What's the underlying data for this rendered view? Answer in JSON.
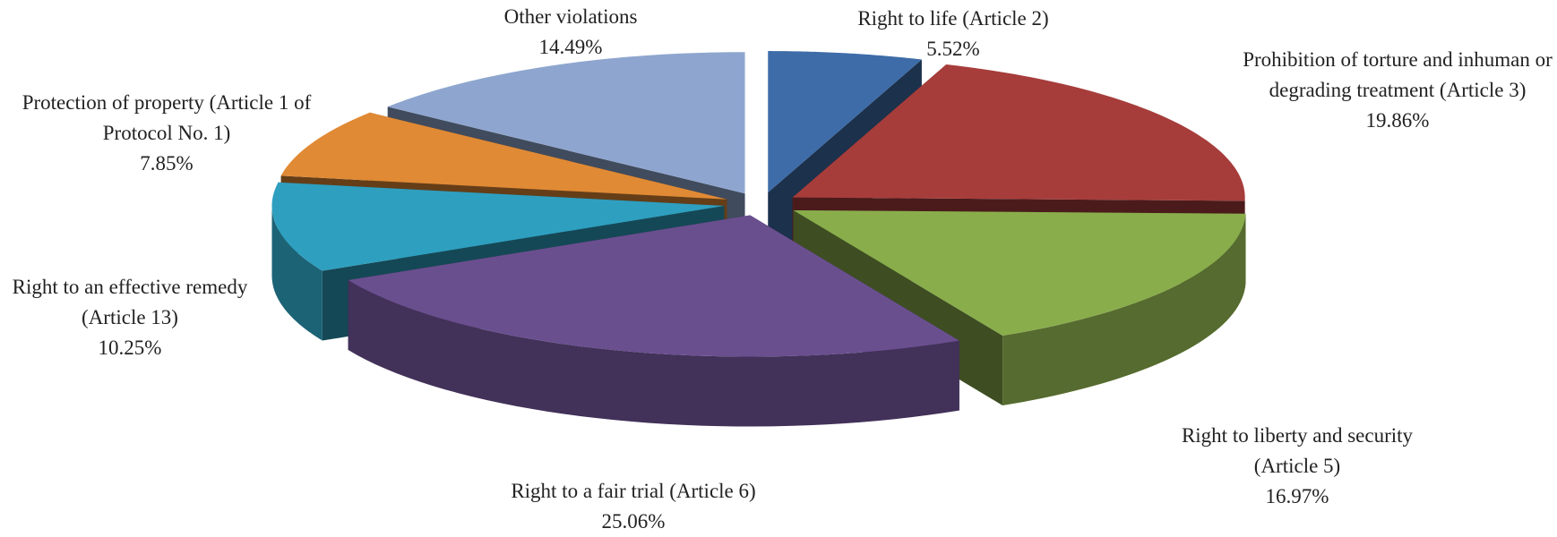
{
  "chart_data": {
    "type": "pie3d",
    "categories": [
      "Right to life (Article 2)",
      "Prohibition of torture and inhuman or degrading treatment (Article 3)",
      "Right to liberty and security (Article 5)",
      "Right to a fair trial (Article 6)",
      "Right to an effective remedy (Article 13)",
      "Protection of property (Article 1 of Protocol No. 1)",
      "Other violations"
    ],
    "values": [
      5.52,
      19.86,
      16.97,
      25.06,
      10.25,
      7.85,
      14.49
    ],
    "value_labels": [
      "5.52%",
      "19.86%",
      "16.97%",
      "25.06%",
      "10.25%",
      "7.85%",
      "14.49%"
    ],
    "colors": [
      "#3e6ca8",
      "#a63d3b",
      "#8aad4c",
      "#6a4f8f",
      "#2f9fbf",
      "#e08a35",
      "#8ea6cf"
    ],
    "exploded": true
  }
}
